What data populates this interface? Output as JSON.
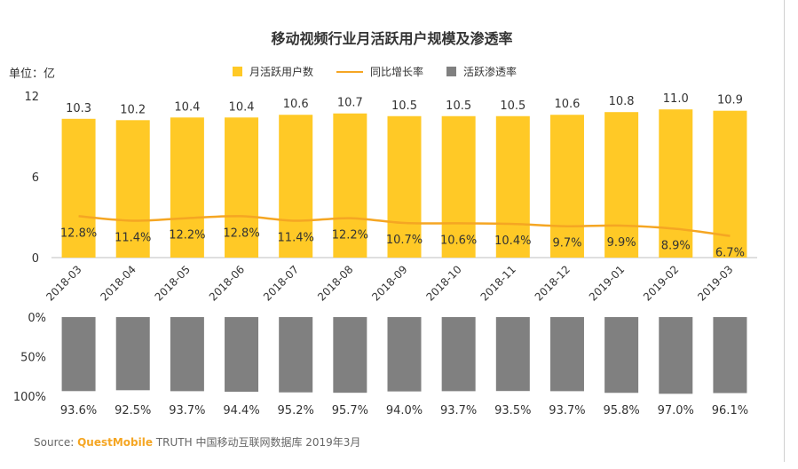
{
  "chart_data": [
    {
      "type": "bar",
      "title": "移动视频行业月活跃用户规模及渗透率",
      "unit_label": "单位：亿",
      "categories": [
        "2018-03",
        "2018-04",
        "2018-05",
        "2018-06",
        "2018-07",
        "2018-08",
        "2018-09",
        "2018-10",
        "2018-11",
        "2018-12",
        "2019-01",
        "2019-02",
        "2019-03"
      ],
      "series": [
        {
          "name": "月活跃用户数",
          "type": "bar",
          "values": [
            10.3,
            10.2,
            10.4,
            10.4,
            10.6,
            10.7,
            10.5,
            10.5,
            10.5,
            10.6,
            10.8,
            11.0,
            10.9
          ],
          "labels": [
            "10.3",
            "10.2",
            "10.4",
            "10.4",
            "10.6",
            "10.7",
            "10.5",
            "10.5",
            "10.5",
            "10.6",
            "10.8",
            "11.0",
            "10.9"
          ],
          "color": "#FFC926"
        },
        {
          "name": "同比增长率",
          "type": "line",
          "values": [
            12.8,
            11.4,
            12.2,
            12.8,
            11.4,
            12.2,
            10.7,
            10.6,
            10.4,
            9.7,
            9.9,
            8.9,
            6.7
          ],
          "labels": [
            "12.8%",
            "11.4%",
            "12.2%",
            "12.8%",
            "11.4%",
            "12.2%",
            "10.7%",
            "10.6%",
            "10.4%",
            "9.7%",
            "9.9%",
            "8.9%",
            "6.7%"
          ],
          "color": "#F5A623"
        }
      ],
      "y_ticks": [
        "12",
        "6",
        "0"
      ],
      "ylim": [
        0,
        12
      ],
      "legend_position": "top"
    },
    {
      "type": "bar",
      "series": [
        {
          "name": "活跃渗透率",
          "values": [
            93.6,
            92.5,
            93.7,
            94.4,
            95.2,
            95.7,
            94.0,
            93.7,
            93.5,
            93.7,
            95.8,
            97.0,
            96.1
          ],
          "labels": [
            "93.6%",
            "92.5%",
            "93.7%",
            "94.4%",
            "95.2%",
            "95.7%",
            "94.0%",
            "93.7%",
            "93.5%",
            "93.7%",
            "95.8%",
            "97.0%",
            "96.1%"
          ],
          "color": "#808080"
        }
      ],
      "y_ticks": [
        "0%",
        "50%",
        "100%"
      ],
      "ylim": [
        0,
        100
      ],
      "y_inverted": true
    }
  ],
  "legend": {
    "bar_label": "月活跃用户数",
    "line_label": "同比增长率",
    "penetration_label": "活跃渗透率"
  },
  "source": {
    "prefix": "Source:",
    "brand": "QuestMobile",
    "text": "TRUTH 中国移动互联网数据库 2019年3月"
  }
}
